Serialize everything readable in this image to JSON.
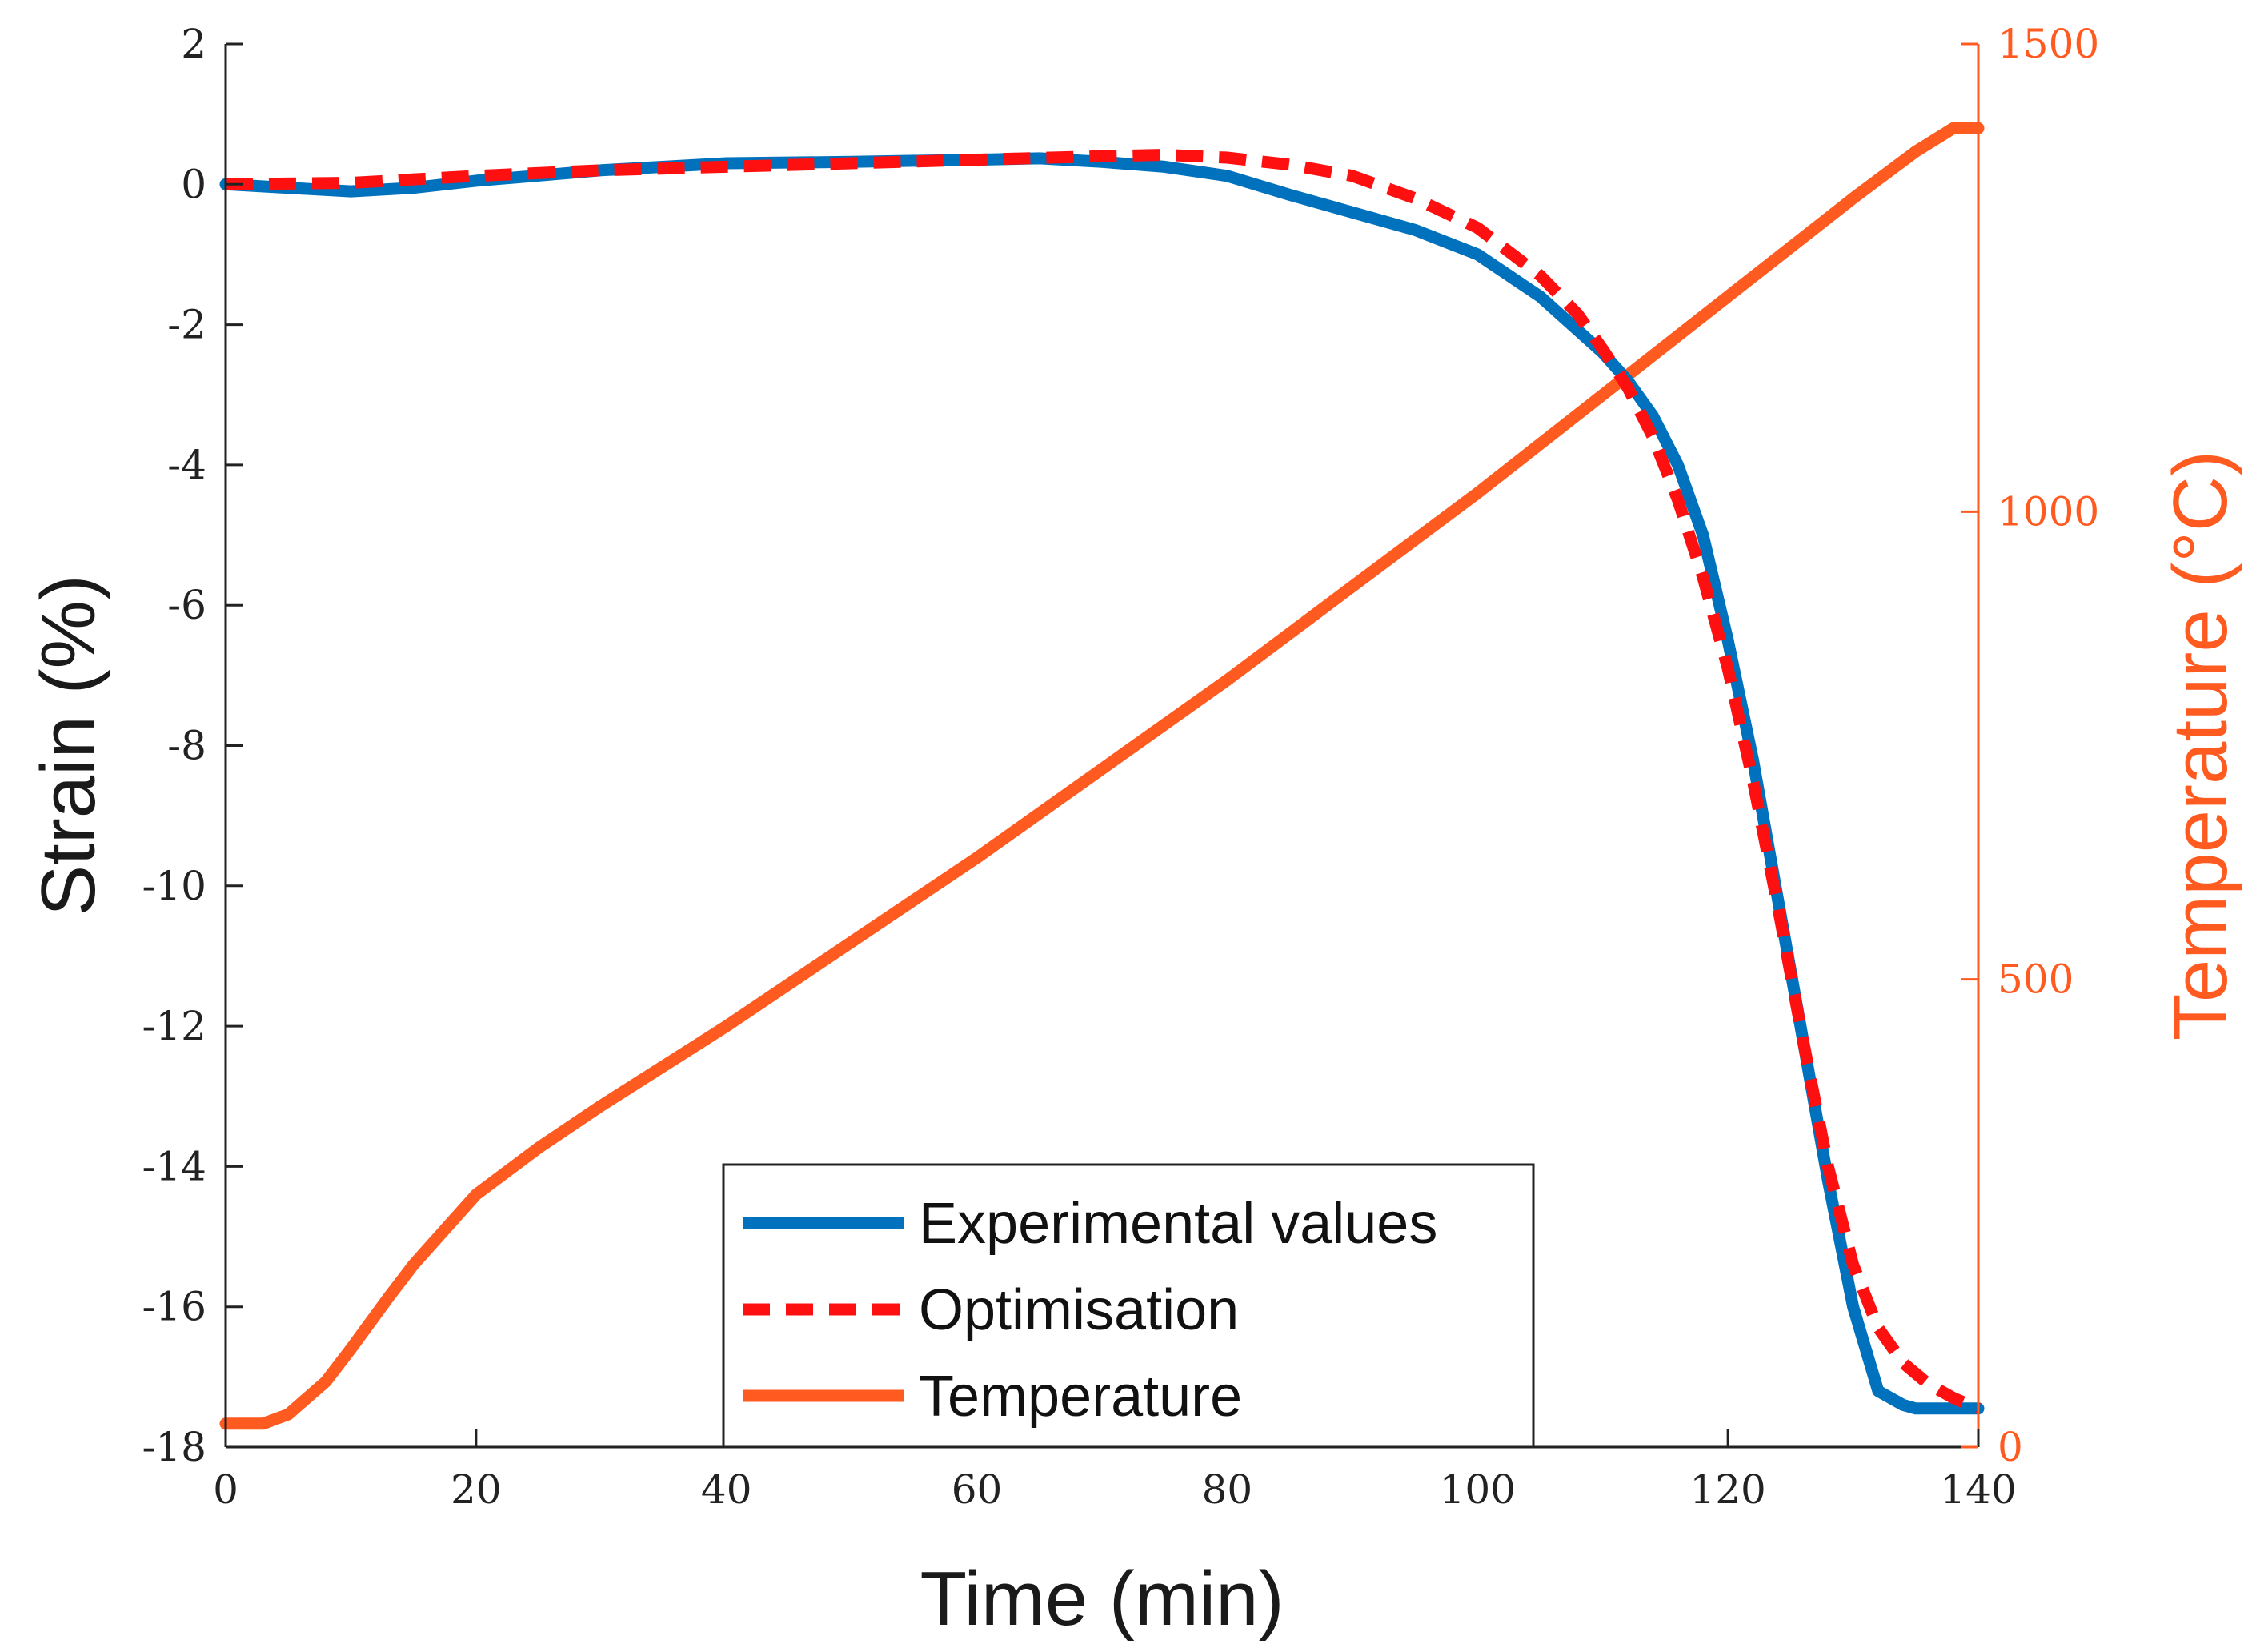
{
  "chart_data": {
    "type": "line",
    "xlabel": "Time (min)",
    "ylabel_left": "Strain (%)",
    "ylabel_right": "Temperature (°C)",
    "xlim": [
      0,
      140
    ],
    "ylim_left": [
      -18,
      2
    ],
    "ylim_right": [
      0,
      1500
    ],
    "x_ticks": [
      0,
      20,
      40,
      60,
      80,
      100,
      120,
      140
    ],
    "y_ticks_left": [
      2,
      0,
      -2,
      -4,
      -6,
      -8,
      -10,
      -12,
      -14,
      -16,
      -18
    ],
    "y_ticks_right": [
      1500,
      1000,
      500,
      0
    ],
    "x_tick_labels": [
      "0",
      "20",
      "40",
      "60",
      "80",
      "100",
      "120",
      "140"
    ],
    "y_tick_labels_left": [
      "2",
      "0",
      "-2",
      "-4",
      "-6",
      "-8",
      "-10",
      "-12",
      "-14",
      "-16",
      "-18"
    ],
    "y_tick_labels_right": [
      "1500",
      "1000",
      "500",
      "0"
    ],
    "legend_position": "bottom-center",
    "colors": {
      "experimental": "#0072BD",
      "optimisation": "#FF1010",
      "temperature": "#FF5A1F",
      "left_axis": "#222222",
      "right_axis": "#FF5A1F"
    },
    "series": [
      {
        "name": "Experimental values",
        "axis": "left",
        "style": "solid",
        "x": [
          0,
          5,
          10,
          15,
          20,
          30,
          40,
          50,
          60,
          65,
          70,
          75,
          80,
          85,
          90,
          95,
          100,
          105,
          110,
          112,
          114,
          116,
          118,
          120,
          122,
          124,
          126,
          128,
          130,
          132,
          134,
          135,
          137,
          140
        ],
        "y": [
          0,
          -0.05,
          -0.1,
          -0.05,
          0.05,
          0.2,
          0.3,
          0.32,
          0.35,
          0.37,
          0.32,
          0.25,
          0.12,
          -0.15,
          -0.4,
          -0.65,
          -1.0,
          -1.6,
          -2.4,
          -2.8,
          -3.3,
          -4.0,
          -5.0,
          -6.5,
          -8.2,
          -10.2,
          -12.2,
          -14.2,
          -16.0,
          -17.2,
          -17.4,
          -17.45,
          -17.45,
          -17.45
        ]
      },
      {
        "name": "Optimisation",
        "axis": "left",
        "style": "dashed",
        "x": [
          0,
          10,
          20,
          30,
          40,
          50,
          60,
          70,
          75,
          80,
          85,
          90,
          95,
          100,
          105,
          108,
          110,
          112,
          114,
          116,
          118,
          120,
          122,
          124,
          126,
          128,
          130,
          132,
          134,
          136,
          138,
          140
        ],
        "y": [
          0,
          0.02,
          0.12,
          0.2,
          0.25,
          0.3,
          0.35,
          0.4,
          0.42,
          0.38,
          0.28,
          0.12,
          -0.2,
          -0.62,
          -1.3,
          -1.85,
          -2.35,
          -2.9,
          -3.6,
          -4.5,
          -5.6,
          -6.9,
          -8.5,
          -10.3,
          -12.2,
          -14.0,
          -15.4,
          -16.3,
          -16.8,
          -17.1,
          -17.3,
          -17.45
        ]
      },
      {
        "name": "Temperature",
        "axis": "right",
        "style": "solid",
        "x": [
          0,
          3,
          5,
          8,
          10,
          13,
          15,
          18,
          20,
          25,
          30,
          40,
          50,
          60,
          70,
          80,
          90,
          100,
          110,
          120,
          130,
          135,
          138,
          140
        ],
        "y": [
          25,
          25,
          35,
          70,
          105,
          160,
          195,
          240,
          270,
          320,
          365,
          450,
          540,
          630,
          725,
          820,
          920,
          1020,
          1125,
          1230,
          1335,
          1385,
          1410,
          1410
        ]
      }
    ]
  }
}
